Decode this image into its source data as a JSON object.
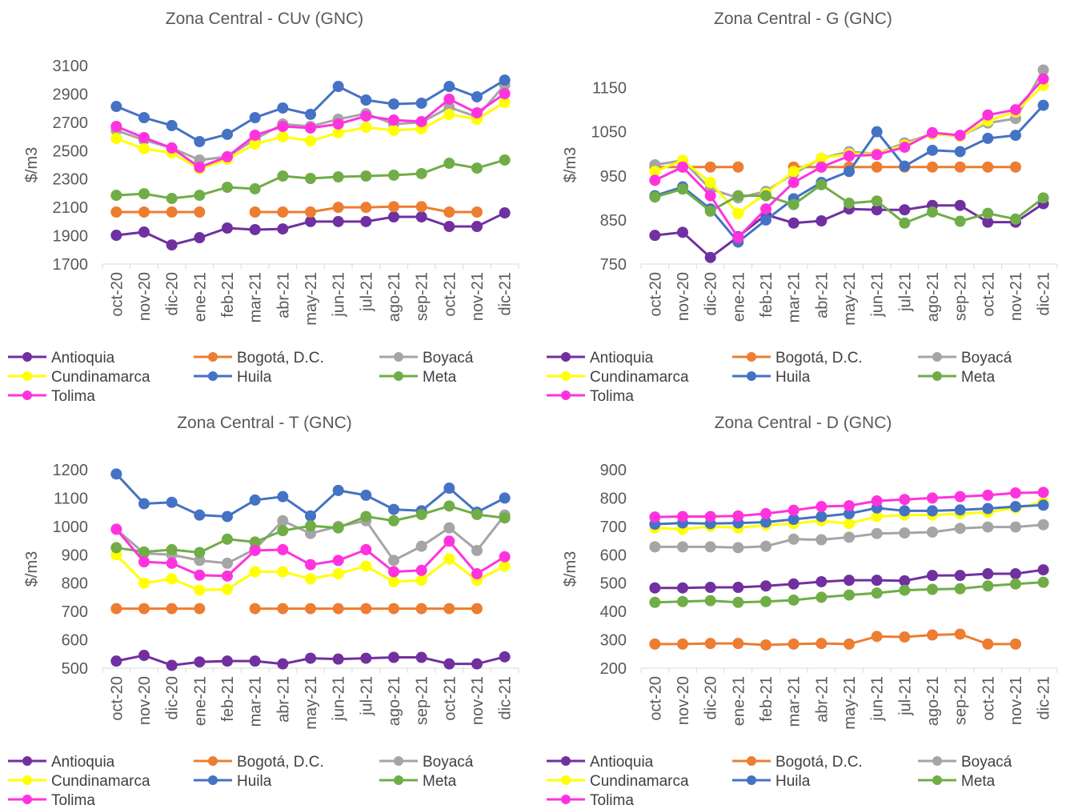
{
  "chart_data": [
    {
      "type": "line",
      "title": "Zona Central - CUv (GNC)",
      "y_label": "$/m3",
      "categories": [
        "oct-20",
        "nov-20",
        "dic-20",
        "ene-21",
        "feb-21",
        "mar-21",
        "abr-21",
        "may-21",
        "jun-21",
        "jul-21",
        "ago-21",
        "sep-21",
        "oct-21",
        "nov-21",
        "dic-21"
      ],
      "ylim": [
        1700,
        3100
      ],
      "yticks": [
        1700,
        1900,
        2100,
        2300,
        2500,
        2700,
        2900,
        3100
      ],
      "series": [
        {
          "name": "Antioquia",
          "color": "#7030a0",
          "values": [
            1903,
            1926,
            1835,
            1886,
            1954,
            1943,
            1948,
            2000,
            2000,
            2000,
            2033,
            2033,
            1965,
            1965,
            2061
          ]
        },
        {
          "name": "Bogotá, D.C.",
          "color": "#ed7d31",
          "values": [
            2067,
            2067,
            2067,
            2067,
            null,
            2067,
            2067,
            2067,
            2100,
            2100,
            2105,
            2105,
            2067,
            2067,
            null
          ]
        },
        {
          "name": "Boyacá",
          "color": "#a5a5a5",
          "values": [
            2643,
            2575,
            2519,
            2434,
            2457,
            2581,
            2688,
            2671,
            2722,
            2761,
            2688,
            2700,
            2806,
            2739,
            2964
          ]
        },
        {
          "name": "Cundinamarca",
          "color": "#ffff00",
          "values": [
            2586,
            2513,
            2485,
            2372,
            2439,
            2547,
            2598,
            2569,
            2626,
            2665,
            2643,
            2654,
            2756,
            2722,
            2840
          ]
        },
        {
          "name": "Huila",
          "color": "#4472c4",
          "values": [
            2812,
            2733,
            2677,
            2564,
            2615,
            2733,
            2801,
            2756,
            2953,
            2857,
            2829,
            2835,
            2953,
            2880,
            2998
          ]
        },
        {
          "name": "Meta",
          "color": "#70ad47",
          "values": [
            2185,
            2196,
            2163,
            2185,
            2242,
            2231,
            2321,
            2304,
            2315,
            2321,
            2327,
            2338,
            2411,
            2377,
            2434
          ]
        },
        {
          "name": "Tolima",
          "color": "#ff33dd",
          "values": [
            2671,
            2592,
            2519,
            2383,
            2457,
            2609,
            2671,
            2660,
            2688,
            2744,
            2716,
            2705,
            2863,
            2767,
            2902
          ]
        }
      ]
    },
    {
      "type": "line",
      "title": "Zona Central - G (GNC)",
      "y_label": "$/m3",
      "categories": [
        "oct-20",
        "nov-20",
        "dic-20",
        "ene-21",
        "feb-21",
        "mar-21",
        "abr-21",
        "may-21",
        "jun-21",
        "jul-21",
        "ago-21",
        "sep-21",
        "oct-21",
        "nov-21",
        "dic-21"
      ],
      "ylim": [
        750,
        1200
      ],
      "yticks": [
        750,
        850,
        950,
        1050,
        1150
      ],
      "series": [
        {
          "name": "Antioquia",
          "color": "#7030a0",
          "values": [
            815,
            822,
            765,
            812,
            862,
            843,
            848,
            875,
            873,
            873,
            883,
            883,
            845,
            845,
            887
          ]
        },
        {
          "name": "Bogotá, D.C.",
          "color": "#ed7d31",
          "values": [
            970,
            970,
            970,
            970,
            null,
            970,
            970,
            970,
            970,
            970,
            970,
            970,
            970,
            970,
            null
          ]
        },
        {
          "name": "Boyacá",
          "color": "#a5a5a5",
          "values": [
            975,
            985,
            920,
            900,
            915,
            955,
            990,
            1005,
            1000,
            1025,
            1045,
            1040,
            1070,
            1080,
            1190
          ]
        },
        {
          "name": "Cundinamarca",
          "color": "#ffff00",
          "values": [
            960,
            985,
            935,
            865,
            910,
            960,
            990,
            1000,
            1000,
            1020,
            1045,
            1040,
            1075,
            1095,
            1155
          ]
        },
        {
          "name": "Huila",
          "color": "#4472c4",
          "values": [
            905,
            925,
            875,
            800,
            850,
            898,
            935,
            960,
            1050,
            972,
            1008,
            1005,
            1035,
            1042,
            1110
          ]
        },
        {
          "name": "Meta",
          "color": "#70ad47",
          "values": [
            902,
            920,
            870,
            905,
            905,
            885,
            930,
            888,
            893,
            843,
            868,
            847,
            865,
            852,
            900
          ]
        },
        {
          "name": "Tolima",
          "color": "#ff33dd",
          "values": [
            940,
            970,
            905,
            810,
            875,
            935,
            970,
            995,
            998,
            1015,
            1048,
            1042,
            1088,
            1100,
            1170
          ]
        }
      ]
    },
    {
      "type": "line",
      "title": "Zona Central - T (GNC)",
      "y_label": "$/m3",
      "categories": [
        "oct-20",
        "nov-20",
        "dic-20",
        "ene-21",
        "feb-21",
        "mar-21",
        "abr-21",
        "may-21",
        "jun-21",
        "jul-21",
        "ago-21",
        "sep-21",
        "oct-21",
        "nov-21",
        "dic-21"
      ],
      "ylim": [
        500,
        1200
      ],
      "yticks": [
        500,
        600,
        700,
        800,
        900,
        1000,
        1100,
        1200
      ],
      "series": [
        {
          "name": "Antioquia",
          "color": "#7030a0",
          "values": [
            525,
            545,
            510,
            522,
            525,
            525,
            515,
            535,
            532,
            535,
            538,
            538,
            515,
            515,
            540
          ]
        },
        {
          "name": "Bogotá, D.C.",
          "color": "#ed7d31",
          "values": [
            710,
            710,
            710,
            710,
            null,
            710,
            710,
            710,
            710,
            710,
            710,
            710,
            710,
            710,
            null
          ]
        },
        {
          "name": "Boyacá",
          "color": "#a5a5a5",
          "values": [
            990,
            905,
            900,
            880,
            870,
            920,
            1020,
            975,
            1000,
            1020,
            880,
            930,
            995,
            915,
            1040
          ]
        },
        {
          "name": "Cundinamarca",
          "color": "#ffff00",
          "values": [
            900,
            800,
            815,
            775,
            778,
            840,
            840,
            815,
            833,
            860,
            805,
            810,
            885,
            810,
            860
          ]
        },
        {
          "name": "Huila",
          "color": "#4472c4",
          "values": [
            1185,
            1080,
            1085,
            1040,
            1035,
            1093,
            1105,
            1037,
            1127,
            1110,
            1060,
            1055,
            1135,
            1050,
            1100
          ]
        },
        {
          "name": "Meta",
          "color": "#70ad47",
          "values": [
            925,
            910,
            918,
            908,
            955,
            945,
            985,
            1002,
            995,
            1035,
            1020,
            1042,
            1072,
            1042,
            1030
          ]
        },
        {
          "name": "Tolima",
          "color": "#ff33dd",
          "values": [
            990,
            875,
            870,
            828,
            825,
            915,
            918,
            865,
            880,
            918,
            840,
            845,
            948,
            833,
            893
          ]
        }
      ]
    },
    {
      "type": "line",
      "title": "Zona Central - D (GNC)",
      "y_label": "$/m3",
      "categories": [
        "oct-20",
        "nov-20",
        "dic-20",
        "ene-21",
        "feb-21",
        "mar-21",
        "abr-21",
        "may-21",
        "jun-21",
        "jul-21",
        "ago-21",
        "sep-21",
        "oct-21",
        "nov-21",
        "dic-21"
      ],
      "ylim": [
        200,
        900
      ],
      "yticks": [
        200,
        300,
        400,
        500,
        600,
        700,
        800,
        900
      ],
      "series": [
        {
          "name": "Antioquia",
          "color": "#7030a0",
          "values": [
            483,
            483,
            485,
            485,
            490,
            497,
            505,
            510,
            510,
            508,
            527,
            527,
            533,
            533,
            547
          ]
        },
        {
          "name": "Bogotá, D.C.",
          "color": "#ed7d31",
          "values": [
            285,
            285,
            287,
            287,
            282,
            285,
            287,
            285,
            312,
            310,
            317,
            320,
            285,
            285,
            null
          ]
        },
        {
          "name": "Boyacá",
          "color": "#a5a5a5",
          "values": [
            628,
            628,
            628,
            625,
            630,
            655,
            653,
            662,
            675,
            677,
            680,
            693,
            698,
            698,
            706
          ]
        },
        {
          "name": "Cundinamarca",
          "color": "#ffff00",
          "values": [
            695,
            690,
            700,
            695,
            705,
            710,
            720,
            710,
            735,
            740,
            740,
            745,
            750,
            765,
            785
          ]
        },
        {
          "name": "Huila",
          "color": "#4472c4",
          "values": [
            708,
            712,
            710,
            712,
            715,
            725,
            735,
            745,
            765,
            755,
            755,
            758,
            763,
            770,
            775
          ]
        },
        {
          "name": "Meta",
          "color": "#70ad47",
          "values": [
            432,
            435,
            438,
            432,
            435,
            440,
            450,
            458,
            465,
            475,
            478,
            480,
            490,
            497,
            503
          ]
        },
        {
          "name": "Tolima",
          "color": "#ff33dd",
          "values": [
            733,
            735,
            735,
            737,
            745,
            757,
            770,
            773,
            790,
            795,
            800,
            805,
            810,
            818,
            820
          ]
        }
      ]
    }
  ]
}
